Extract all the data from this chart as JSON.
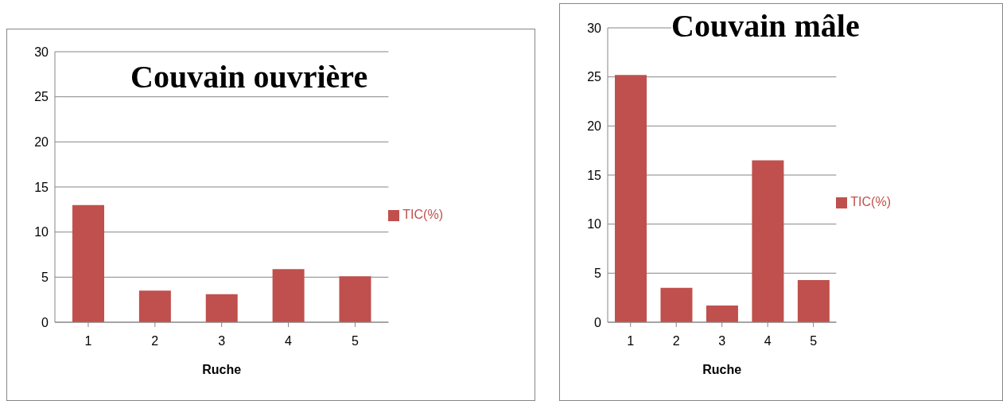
{
  "chart_data": [
    {
      "type": "bar",
      "title": "Couvain ouvrière",
      "xlabel": "Ruche",
      "categories": [
        "1",
        "2",
        "3",
        "4",
        "5"
      ],
      "series": [
        {
          "name": "TIC(%)",
          "color": "#c0504d",
          "values": [
            13.0,
            3.5,
            3.1,
            5.9,
            5.1
          ]
        }
      ],
      "ylim": [
        0,
        30
      ],
      "yticks": [
        0,
        5,
        10,
        15,
        20,
        25,
        30
      ],
      "grid": "y",
      "legend": "right"
    },
    {
      "type": "bar",
      "title": "Couvain mâle",
      "xlabel": "Ruche",
      "categories": [
        "1",
        "2",
        "3",
        "4",
        "5"
      ],
      "series": [
        {
          "name": "TIC(%)",
          "color": "#c0504d",
          "values": [
            25.2,
            3.5,
            1.7,
            16.5,
            4.3
          ]
        }
      ],
      "ylim": [
        0,
        30
      ],
      "yticks": [
        0,
        5,
        10,
        15,
        20,
        25,
        30
      ],
      "grid": "y",
      "legend": "right"
    }
  ]
}
